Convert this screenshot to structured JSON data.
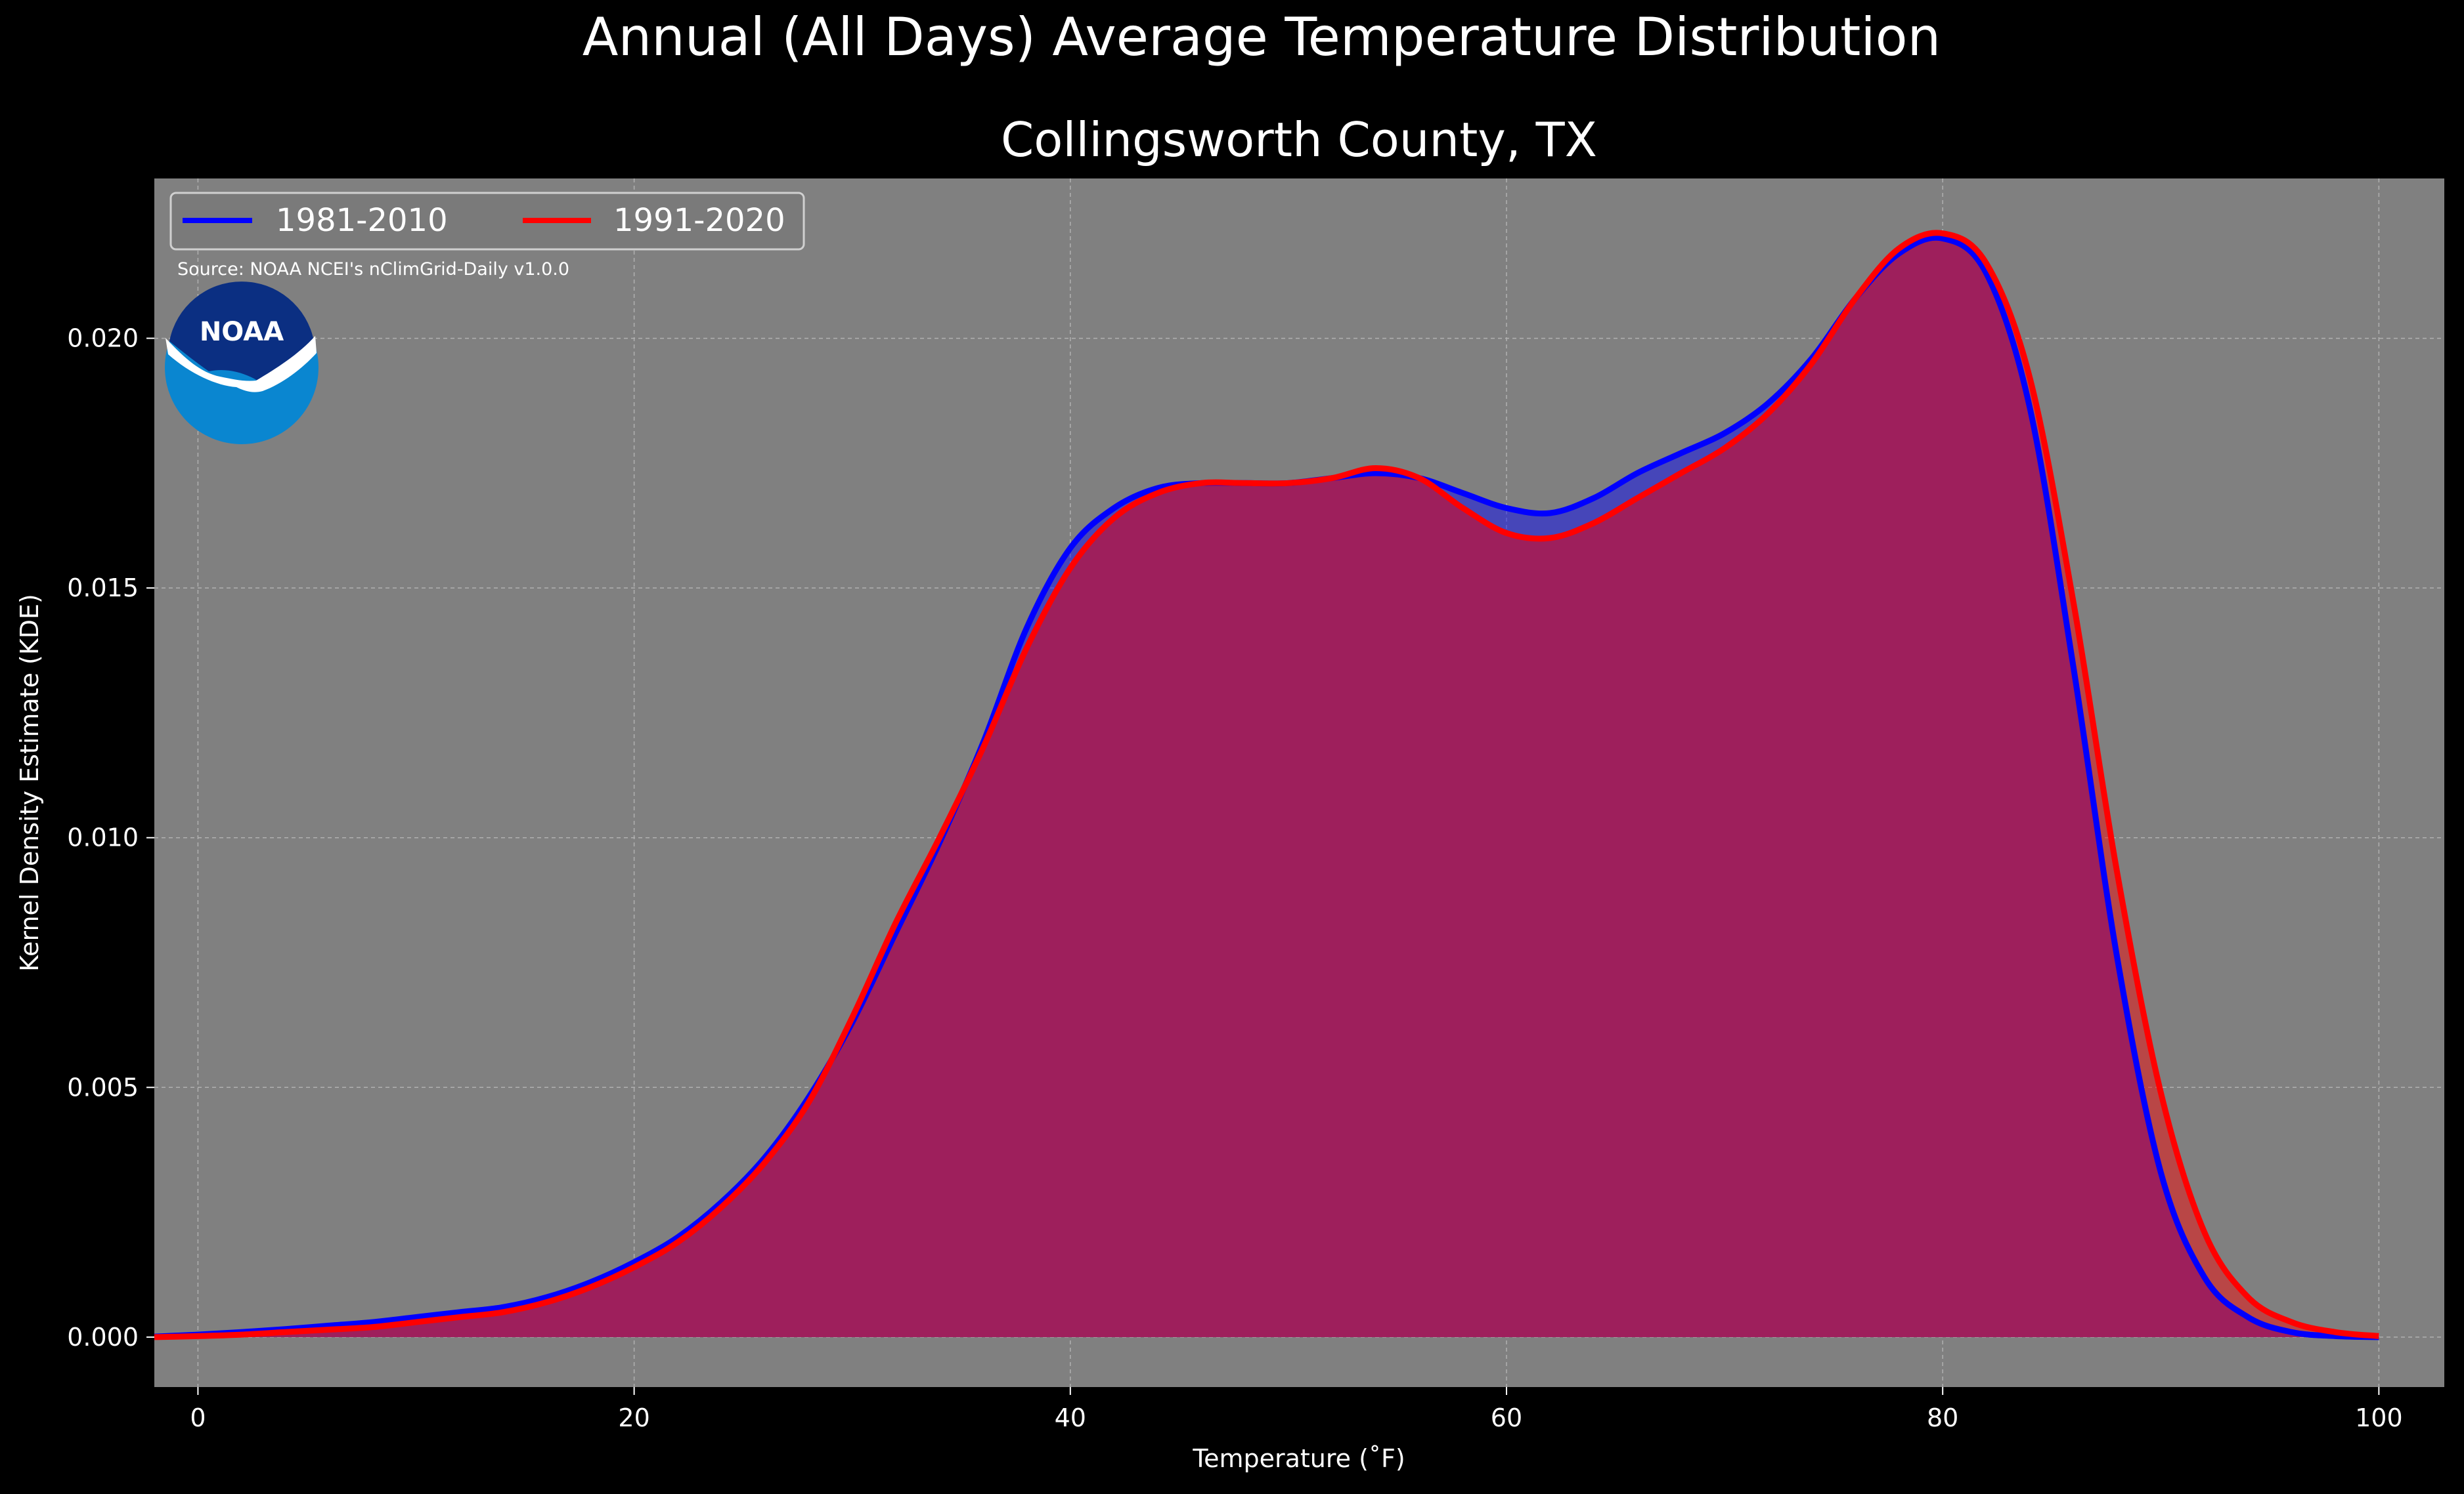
{
  "chart_data": {
    "type": "area",
    "title": "Annual (All Days) Average Temperature Distribution",
    "subtitle": "Collingsworth County, TX",
    "xlabel": "Temperature (˚F)",
    "ylabel": "Kernel Density Estimate (KDE)",
    "xlim": [
      -2,
      103
    ],
    "ylim": [
      -0.001,
      0.0232
    ],
    "xticks": [
      0,
      20,
      40,
      60,
      80,
      100
    ],
    "xtick_labels": [
      "0",
      "20",
      "40",
      "60",
      "80",
      "100"
    ],
    "yticks": [
      0.0,
      0.005,
      0.01,
      0.015,
      0.02
    ],
    "ytick_labels": [
      "0.000",
      "0.005",
      "0.010",
      "0.015",
      "0.020"
    ],
    "grid": true,
    "legend_position": "top-left",
    "source_note": "Source: NOAA NCEI's nClimGrid-Daily v1.0.0",
    "logo_text": "NOAA",
    "colors": {
      "figure_bg": "#000000",
      "axes_bg": "#808080",
      "series_1": "#0000ff",
      "series_2": "#ff0000",
      "overlap_fill": "#9e1f5c",
      "grid": "#b0b0b0",
      "logo_outer": "#0a86d0",
      "logo_inner": "#0b2f82"
    },
    "x": [
      -2,
      0,
      2,
      4,
      6,
      8,
      10,
      12,
      14,
      16,
      18,
      20,
      22,
      24,
      26,
      28,
      30,
      32,
      34,
      36,
      38,
      40,
      42,
      44,
      46,
      48,
      50,
      52,
      54,
      56,
      58,
      60,
      62,
      64,
      66,
      68,
      70,
      72,
      74,
      76,
      78,
      80,
      82,
      84,
      86,
      88,
      90,
      92,
      94,
      96,
      98,
      100
    ],
    "series": [
      {
        "name": "1981-2010",
        "values": [
          1e-05,
          5e-05,
          0.0001,
          0.00016,
          0.00023,
          0.0003,
          0.0004,
          0.0005,
          0.0006,
          0.0008,
          0.0011,
          0.0015,
          0.002,
          0.0027,
          0.0036,
          0.0048,
          0.0063,
          0.0081,
          0.0099,
          0.0119,
          0.0142,
          0.0158,
          0.0166,
          0.017,
          0.0171,
          0.0171,
          0.0171,
          0.0172,
          0.0173,
          0.0172,
          0.0169,
          0.0166,
          0.0165,
          0.0168,
          0.0173,
          0.0177,
          0.0181,
          0.0187,
          0.0196,
          0.0208,
          0.0217,
          0.022,
          0.0213,
          0.0186,
          0.0134,
          0.0076,
          0.0033,
          0.0012,
          0.0004,
          0.0001,
          2e-05,
          0.0
        ]
      },
      {
        "name": "1991-2020",
        "values": [
          0.0,
          2e-05,
          5e-05,
          0.0001,
          0.00015,
          0.0002,
          0.0003,
          0.0004,
          0.0005,
          0.0007,
          0.001,
          0.0014,
          0.0019,
          0.0026,
          0.0035,
          0.0047,
          0.0064,
          0.0083,
          0.01,
          0.0118,
          0.0138,
          0.0154,
          0.0164,
          0.0169,
          0.0171,
          0.0171,
          0.0171,
          0.0172,
          0.0174,
          0.0172,
          0.0166,
          0.0161,
          0.016,
          0.0163,
          0.0168,
          0.0173,
          0.0178,
          0.0185,
          0.0195,
          0.0208,
          0.0218,
          0.0221,
          0.0215,
          0.0192,
          0.0147,
          0.0093,
          0.0049,
          0.0021,
          0.0008,
          0.0003,
          0.0001,
          2e-05
        ]
      }
    ]
  }
}
